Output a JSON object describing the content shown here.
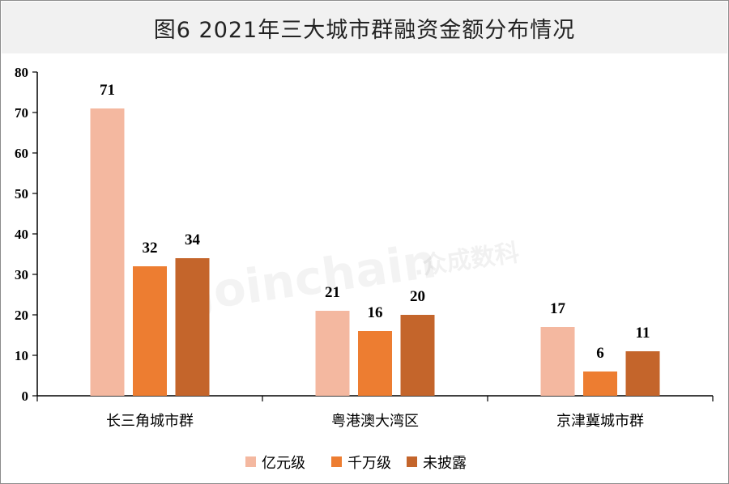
{
  "title": "图6  2021年三大城市群融资金额分布情况",
  "watermark": {
    "brand": "Joinchain",
    "suffix": ".众成数科"
  },
  "chart_data": {
    "type": "bar",
    "title": "图6  2021年三大城市群融资金额分布情况",
    "categories": [
      "长三角城市群",
      "粤港澳大湾区",
      "京津冀城市群"
    ],
    "series": [
      {
        "name": "亿元级",
        "color": "#f4b8a0",
        "values": [
          71,
          21,
          17
        ]
      },
      {
        "name": "千万级",
        "color": "#ed7d31",
        "values": [
          32,
          16,
          6
        ]
      },
      {
        "name": "未披露",
        "color": "#c4652b",
        "values": [
          34,
          20,
          11
        ]
      }
    ],
    "ylim": [
      0,
      80
    ],
    "yticks": [
      0,
      10,
      20,
      30,
      40,
      50,
      60,
      70,
      80
    ],
    "grid": false,
    "legend": "bottom-center"
  }
}
